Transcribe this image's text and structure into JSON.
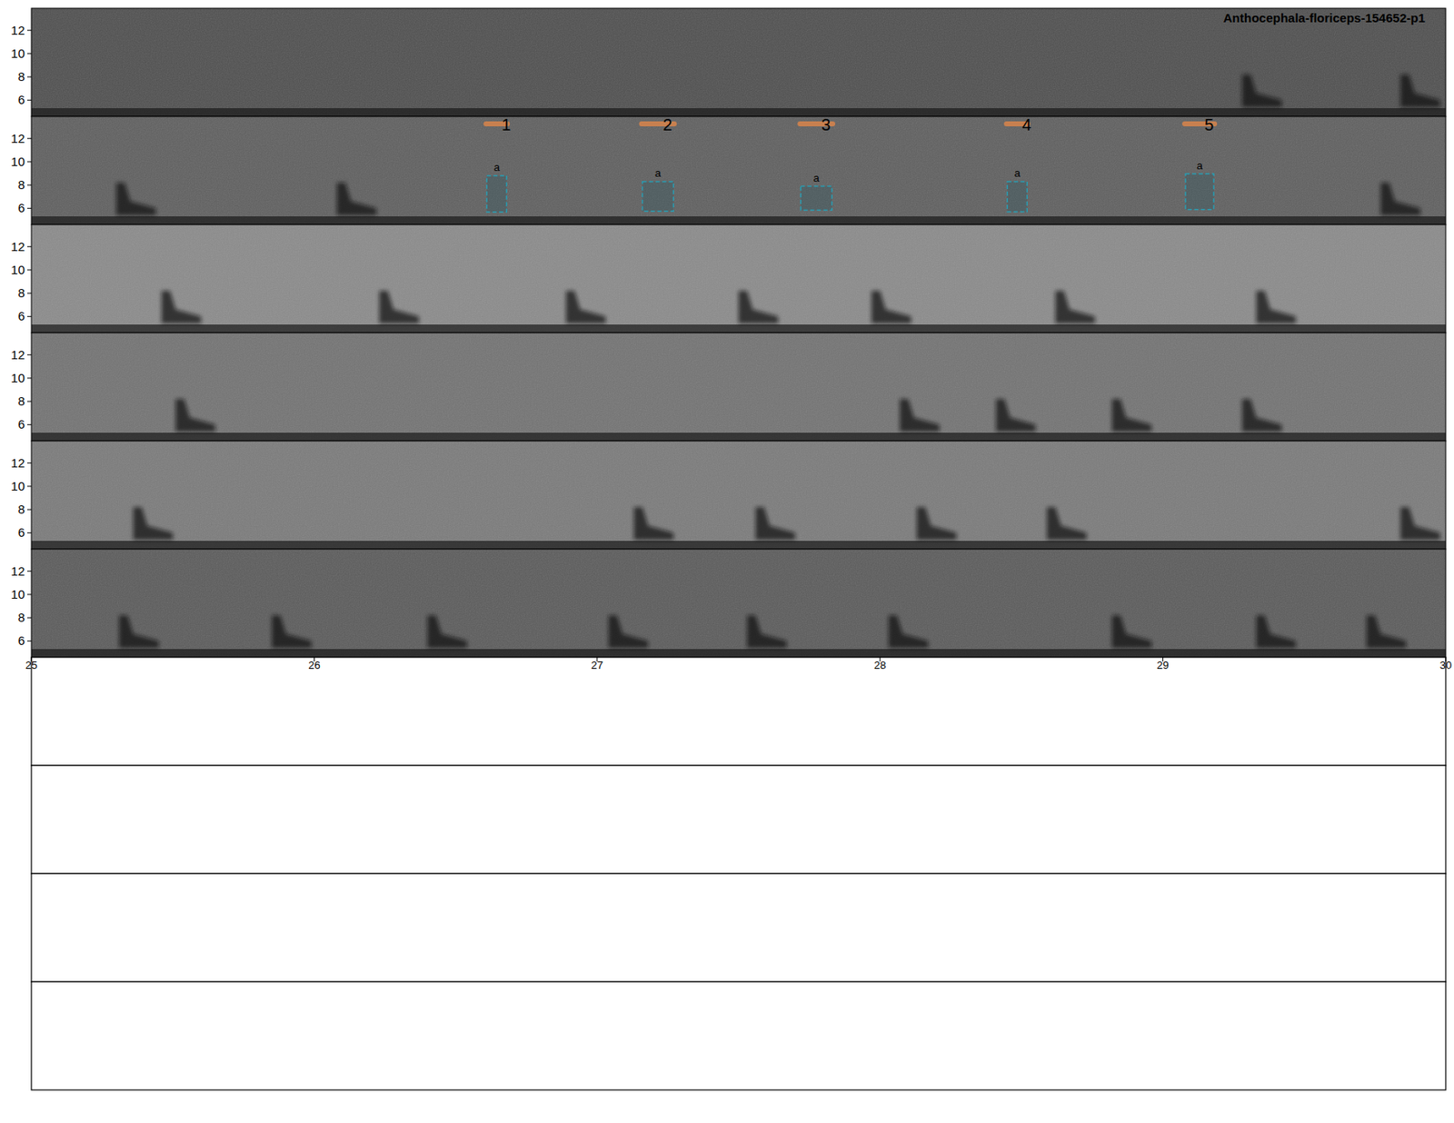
{
  "chart_data": {
    "type": "spectrogram",
    "title": "Anthocephala-floriceps-154652-p1",
    "xlim": [
      25,
      30
    ],
    "xticks": [
      25,
      26,
      27,
      28,
      29,
      30
    ],
    "ylim": [
      4.6,
      13.9
    ],
    "yticks": [
      6,
      8,
      10,
      12
    ],
    "rows": [
      {
        "calls": [
          29.28,
          29.84
        ]
      },
      {
        "calls": [
          25.3,
          26.08,
          29.77
        ]
      },
      {
        "calls": [
          25.46,
          26.23,
          26.89,
          27.5,
          27.97,
          28.62,
          29.33
        ]
      },
      {
        "calls": [
          25.51,
          28.07,
          28.41,
          28.82,
          29.28
        ]
      },
      {
        "calls": [
          25.36,
          27.13,
          27.56,
          28.13,
          28.59,
          29.84
        ]
      },
      {
        "calls": [
          25.31,
          25.85,
          26.4,
          27.04,
          27.53,
          28.03,
          28.82,
          29.33,
          29.72
        ]
      }
    ],
    "annotations": [
      {
        "row": 1,
        "label": "1",
        "box_label": "a",
        "start": 26.61,
        "end": 26.68,
        "low": 5.68,
        "high": 8.8
      },
      {
        "row": 1,
        "label": "2",
        "box_label": "a",
        "start": 27.16,
        "end": 27.27,
        "low": 5.76,
        "high": 8.3
      },
      {
        "row": 1,
        "label": "3",
        "box_label": "a",
        "start": 27.72,
        "end": 27.83,
        "low": 5.84,
        "high": 7.9
      },
      {
        "row": 1,
        "label": "4",
        "box_label": "a",
        "start": 28.45,
        "end": 28.52,
        "low": 5.7,
        "high": 8.3
      },
      {
        "row": 1,
        "label": "5",
        "box_label": "a",
        "start": 29.08,
        "end": 29.18,
        "low": 5.9,
        "high": 8.96
      }
    ]
  }
}
